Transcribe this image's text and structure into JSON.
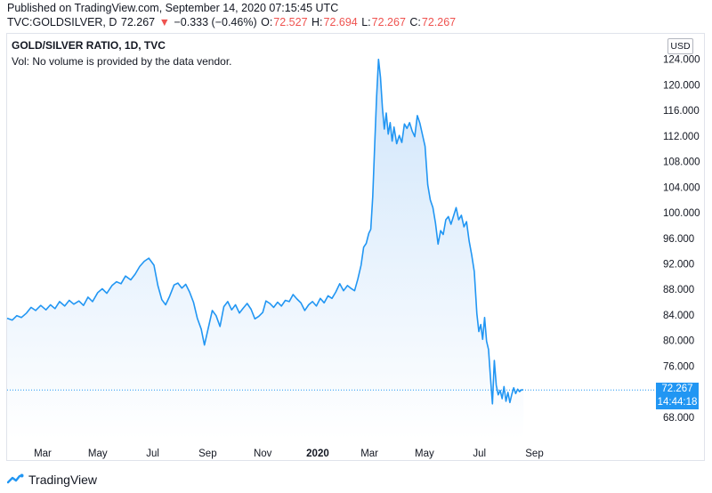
{
  "header": {
    "published": "Published on TradingView.com, September 14, 2020 07:15:45 UTC",
    "symbol": "TVC:GOLDSILVER, D",
    "last": "72.267",
    "change_arrow": "▼",
    "change": "−0.333 (−0.46%)",
    "o_label": "O:",
    "o_value": "72.527",
    "h_label": "H:",
    "h_value": "72.694",
    "l_label": "L:",
    "l_value": "72.267",
    "c_label": "C:",
    "c_value": "72.267"
  },
  "legend": {
    "title": "GOLD/SILVER RATIO, 1D, TVC",
    "volume_note": "Vol: No volume is provided by the data vendor."
  },
  "currency": "USD",
  "price_tag": {
    "value": "72.267",
    "countdown": "14:44:18"
  },
  "footer": {
    "brand": "TradingView",
    "logo_icon": "tradingview-logo-icon"
  },
  "colors": {
    "line": "#2196f3",
    "fill_top": "#cfe5fb",
    "fill_bottom": "#ffffff",
    "down": "#ef5350",
    "axis_text": "#131722"
  },
  "chart_data": {
    "type": "area",
    "title": "GOLD/SILVER RATIO, 1D, TVC",
    "x_ticks": [
      {
        "label": "Mar",
        "t": 0.055,
        "bold": false
      },
      {
        "label": "May",
        "t": 0.14,
        "bold": false
      },
      {
        "label": "Jul",
        "t": 0.225,
        "bold": false
      },
      {
        "label": "Sep",
        "t": 0.31,
        "bold": false
      },
      {
        "label": "Nov",
        "t": 0.395,
        "bold": false
      },
      {
        "label": "2020",
        "t": 0.48,
        "bold": true
      },
      {
        "label": "Mar",
        "t": 0.56,
        "bold": false
      },
      {
        "label": "May",
        "t": 0.645,
        "bold": false
      },
      {
        "label": "Jul",
        "t": 0.73,
        "bold": false
      },
      {
        "label": "Sep",
        "t": 0.815,
        "bold": false
      }
    ],
    "y_ticks": [
      "124.000",
      "120.000",
      "116.000",
      "112.000",
      "108.000",
      "104.000",
      "100.000",
      "96.000",
      "92.000",
      "88.000",
      "84.000",
      "80.000",
      "76.000",
      "72.000",
      "68.000"
    ],
    "ylim": [
      64.5,
      128
    ],
    "xlim": [
      0,
      1
    ],
    "last_value": 72.267,
    "series": [
      {
        "points": [
          [
            0.0,
            83.5
          ],
          [
            0.008,
            83.2
          ],
          [
            0.015,
            83.9
          ],
          [
            0.022,
            83.6
          ],
          [
            0.03,
            84.3
          ],
          [
            0.037,
            85.2
          ],
          [
            0.044,
            84.7
          ],
          [
            0.052,
            85.5
          ],
          [
            0.06,
            84.8
          ],
          [
            0.067,
            85.6
          ],
          [
            0.074,
            85.0
          ],
          [
            0.081,
            86.1
          ],
          [
            0.089,
            85.4
          ],
          [
            0.096,
            86.3
          ],
          [
            0.103,
            85.7
          ],
          [
            0.111,
            86.2
          ],
          [
            0.118,
            85.5
          ],
          [
            0.125,
            86.8
          ],
          [
            0.132,
            86.1
          ],
          [
            0.14,
            87.5
          ],
          [
            0.147,
            88.1
          ],
          [
            0.154,
            87.4
          ],
          [
            0.162,
            88.6
          ],
          [
            0.169,
            89.2
          ],
          [
            0.176,
            88.9
          ],
          [
            0.183,
            90.1
          ],
          [
            0.191,
            89.5
          ],
          [
            0.198,
            90.4
          ],
          [
            0.205,
            91.6
          ],
          [
            0.212,
            92.4
          ],
          [
            0.219,
            92.9
          ],
          [
            0.227,
            91.8
          ],
          [
            0.233,
            88.6
          ],
          [
            0.239,
            86.4
          ],
          [
            0.245,
            85.6
          ],
          [
            0.251,
            86.9
          ],
          [
            0.258,
            88.7
          ],
          [
            0.264,
            89.0
          ],
          [
            0.27,
            88.2
          ],
          [
            0.276,
            88.8
          ],
          [
            0.282,
            87.6
          ],
          [
            0.288,
            86.0
          ],
          [
            0.294,
            83.5
          ],
          [
            0.3,
            81.8
          ],
          [
            0.305,
            79.3
          ],
          [
            0.311,
            82.0
          ],
          [
            0.317,
            84.7
          ],
          [
            0.323,
            83.9
          ],
          [
            0.329,
            82.2
          ],
          [
            0.335,
            85.3
          ],
          [
            0.341,
            86.1
          ],
          [
            0.347,
            84.8
          ],
          [
            0.353,
            85.6
          ],
          [
            0.359,
            84.3
          ],
          [
            0.365,
            85.1
          ],
          [
            0.371,
            85.8
          ],
          [
            0.377,
            84.9
          ],
          [
            0.383,
            83.4
          ],
          [
            0.389,
            83.8
          ],
          [
            0.395,
            84.4
          ],
          [
            0.4,
            86.2
          ],
          [
            0.406,
            85.8
          ],
          [
            0.412,
            85.2
          ],
          [
            0.418,
            86.0
          ],
          [
            0.424,
            85.4
          ],
          [
            0.43,
            86.3
          ],
          [
            0.436,
            86.1
          ],
          [
            0.442,
            87.2
          ],
          [
            0.448,
            86.5
          ],
          [
            0.454,
            85.9
          ],
          [
            0.46,
            84.7
          ],
          [
            0.466,
            85.6
          ],
          [
            0.472,
            86.1
          ],
          [
            0.478,
            85.4
          ],
          [
            0.484,
            86.6
          ],
          [
            0.49,
            85.9
          ],
          [
            0.496,
            87.0
          ],
          [
            0.502,
            86.6
          ],
          [
            0.508,
            87.6
          ],
          [
            0.514,
            88.9
          ],
          [
            0.52,
            87.8
          ],
          [
            0.526,
            88.6
          ],
          [
            0.531,
            88.2
          ],
          [
            0.537,
            87.8
          ],
          [
            0.542,
            89.6
          ],
          [
            0.547,
            91.8
          ],
          [
            0.551,
            94.6
          ],
          [
            0.555,
            95.2
          ],
          [
            0.559,
            96.8
          ],
          [
            0.562,
            97.4
          ],
          [
            0.565,
            102.5
          ],
          [
            0.568,
            110.2
          ],
          [
            0.571,
            118.0
          ],
          [
            0.574,
            124.0
          ],
          [
            0.577,
            121.2
          ],
          [
            0.58,
            116.4
          ],
          [
            0.583,
            113.1
          ],
          [
            0.586,
            115.6
          ],
          [
            0.589,
            112.3
          ],
          [
            0.592,
            114.1
          ],
          [
            0.595,
            111.2
          ],
          [
            0.598,
            113.4
          ],
          [
            0.602,
            110.8
          ],
          [
            0.606,
            112.1
          ],
          [
            0.61,
            111.0
          ],
          [
            0.614,
            113.9
          ],
          [
            0.618,
            113.2
          ],
          [
            0.622,
            114.1
          ],
          [
            0.626,
            112.8
          ],
          [
            0.63,
            111.9
          ],
          [
            0.634,
            115.2
          ],
          [
            0.638,
            114.0
          ],
          [
            0.642,
            112.2
          ],
          [
            0.646,
            110.4
          ],
          [
            0.65,
            104.4
          ],
          [
            0.654,
            102.0
          ],
          [
            0.658,
            100.8
          ],
          [
            0.662,
            98.4
          ],
          [
            0.666,
            95.1
          ],
          [
            0.67,
            97.2
          ],
          [
            0.674,
            96.6
          ],
          [
            0.678,
            98.9
          ],
          [
            0.682,
            99.4
          ],
          [
            0.686,
            98.2
          ],
          [
            0.69,
            99.5
          ],
          [
            0.694,
            100.8
          ],
          [
            0.698,
            98.9
          ],
          [
            0.702,
            99.6
          ],
          [
            0.706,
            97.8
          ],
          [
            0.71,
            98.6
          ],
          [
            0.714,
            95.6
          ],
          [
            0.718,
            93.4
          ],
          [
            0.722,
            90.8
          ],
          [
            0.726,
            84.2
          ],
          [
            0.729,
            81.4
          ],
          [
            0.732,
            82.5
          ],
          [
            0.735,
            80.2
          ],
          [
            0.738,
            83.6
          ],
          [
            0.741,
            79.9
          ],
          [
            0.744,
            78.6
          ],
          [
            0.747,
            74.2
          ],
          [
            0.75,
            70.1
          ],
          [
            0.753,
            76.9
          ],
          [
            0.756,
            73.0
          ],
          [
            0.759,
            71.5
          ],
          [
            0.762,
            72.2
          ],
          [
            0.765,
            70.9
          ],
          [
            0.768,
            72.8
          ],
          [
            0.771,
            70.5
          ],
          [
            0.774,
            71.9
          ],
          [
            0.777,
            70.3
          ],
          [
            0.78,
            71.6
          ],
          [
            0.783,
            72.6
          ],
          [
            0.786,
            71.7
          ],
          [
            0.789,
            72.4
          ],
          [
            0.792,
            72.0
          ],
          [
            0.795,
            72.3
          ],
          [
            0.798,
            72.27
          ]
        ]
      }
    ]
  }
}
